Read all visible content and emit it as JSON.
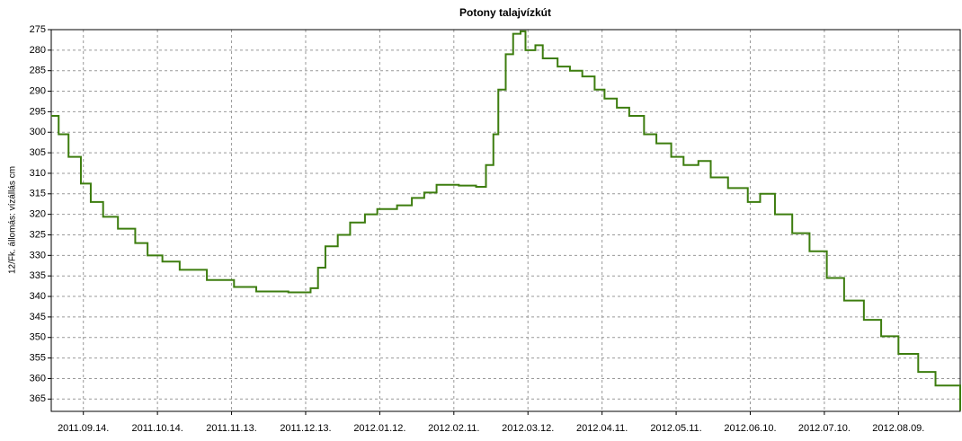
{
  "chart_data": {
    "type": "line",
    "title": "Potony talajvízkút",
    "y_label": "12/Fk. állomás: vízállás cm",
    "x": [
      "2011-09-01",
      "2011-09-04",
      "2011-09-08",
      "2011-09-13",
      "2011-09-17",
      "2011-09-22",
      "2011-09-28",
      "2011-10-05",
      "2011-10-10",
      "2011-10-16",
      "2011-10-23",
      "2011-11-03",
      "2011-11-14",
      "2011-11-23",
      "2011-12-06",
      "2011-12-15",
      "2011-12-18",
      "2011-12-21",
      "2011-12-26",
      "2011-12-31",
      "2012-01-06",
      "2012-01-11",
      "2012-01-19",
      "2012-01-25",
      "2012-01-30",
      "2012-02-04",
      "2012-02-13",
      "2012-02-20",
      "2012-02-24",
      "2012-02-27",
      "2012-02-29",
      "2012-03-03",
      "2012-03-06",
      "2012-03-09",
      "2012-03-11",
      "2012-03-15",
      "2012-03-18",
      "2012-03-24",
      "2012-03-29",
      "2012-04-03",
      "2012-04-08",
      "2012-04-12",
      "2012-04-17",
      "2012-04-22",
      "2012-04-28",
      "2012-05-03",
      "2012-05-09",
      "2012-05-14",
      "2012-05-20",
      "2012-05-25",
      "2012-06-01",
      "2012-06-09",
      "2012-06-14",
      "2012-06-20",
      "2012-06-27",
      "2012-07-04",
      "2012-07-11",
      "2012-07-18",
      "2012-07-26",
      "2012-08-02",
      "2012-08-09",
      "2012-08-17",
      "2012-08-24",
      "2012-09-03"
    ],
    "series": [
      {
        "name": "vízállás",
        "color": "#3d7d0f",
        "values": [
          296,
          300.5,
          306,
          312.5,
          317,
          320.6,
          323.5,
          327,
          330,
          331.5,
          333.5,
          336,
          337.7,
          338.8,
          339,
          338,
          333,
          327.8,
          325,
          322,
          320,
          318.7,
          317.8,
          316,
          314.7,
          312.8,
          313,
          313.3,
          308,
          300.5,
          289.6,
          281,
          276,
          275.4,
          280,
          278.8,
          282,
          284,
          285,
          286.4,
          289.6,
          291.8,
          294,
          296,
          300.5,
          302.7,
          306,
          308,
          307,
          311,
          313.6,
          317,
          315,
          320,
          324.6,
          329,
          335.5,
          341,
          345.7,
          349.7,
          354,
          358.4,
          361.7,
          367.8
        ]
      }
    ],
    "xlim": [
      "2011-09-01",
      "2012-09-03"
    ],
    "xticks": [
      {
        "value": "2011-09-14",
        "label": "2011.09.14."
      },
      {
        "value": "2011-10-14",
        "label": "2011.10.14."
      },
      {
        "value": "2011-11-13",
        "label": "2011.11.13."
      },
      {
        "value": "2011-12-13",
        "label": "2011.12.13."
      },
      {
        "value": "2012-01-12",
        "label": "2012.01.12."
      },
      {
        "value": "2012-02-11",
        "label": "2012.02.11."
      },
      {
        "value": "2012-03-12",
        "label": "2012.03.12."
      },
      {
        "value": "2012-04-11",
        "label": "2012.04.11."
      },
      {
        "value": "2012-05-11",
        "label": "2012.05.11."
      },
      {
        "value": "2012-06-10",
        "label": "2012.06.10."
      },
      {
        "value": "2012-07-10",
        "label": "2012.07.10."
      },
      {
        "value": "2012-08-09",
        "label": "2012.08.09."
      }
    ],
    "ylim": [
      275,
      368
    ],
    "y_inverted": true,
    "yticks": [
      275,
      280,
      285,
      290,
      295,
      300,
      305,
      310,
      315,
      320,
      325,
      330,
      335,
      340,
      345,
      350,
      355,
      360,
      365
    ],
    "grid": true
  }
}
